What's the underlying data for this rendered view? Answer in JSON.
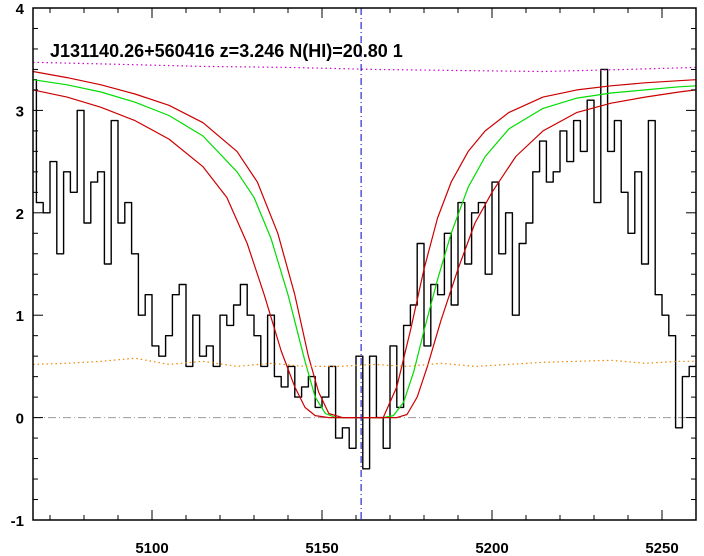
{
  "chart_data": {
    "type": "line",
    "title": "J131140.26+560416 z=3.246 N(HI)=20.80 1",
    "xlabel": "",
    "ylabel": "",
    "xlim": [
      5065,
      5260
    ],
    "ylim": [
      -1,
      4
    ],
    "x_ticks": [
      5100,
      5150,
      5200,
      5250
    ],
    "y_ticks": [
      -1,
      0,
      1,
      2,
      3,
      4
    ],
    "grid": false,
    "line_center": 5161.5,
    "series": [
      {
        "name": "",
        "style": "step",
        "color": "#000000",
        "x": [
          5065,
          5067,
          5069,
          5071,
          5073,
          5075,
          5077,
          5079,
          5081,
          5083,
          5085,
          5087,
          5089,
          5091,
          5093,
          5095,
          5097,
          5099,
          5101,
          5103,
          5105,
          5107,
          5109,
          5111,
          5113,
          5115,
          5117,
          5119,
          5121,
          5123,
          5125,
          5127,
          5129,
          5131,
          5133,
          5135,
          5137,
          5139,
          5141,
          5143,
          5145,
          5147,
          5149,
          5151,
          5153,
          5155,
          5157,
          5159,
          5161,
          5163,
          5165,
          5167,
          5169,
          5171,
          5173,
          5175,
          5177,
          5179,
          5181,
          5183,
          5185,
          5187,
          5189,
          5191,
          5193,
          5195,
          5197,
          5199,
          5201,
          5203,
          5205,
          5207,
          5209,
          5211,
          5213,
          5215,
          5217,
          5219,
          5221,
          5223,
          5225,
          5227,
          5229,
          5231,
          5233,
          5235,
          5237,
          5239,
          5241,
          5243,
          5245,
          5247,
          5249,
          5251,
          5253,
          5255,
          5257,
          5259
        ],
        "y": [
          3.3,
          2.1,
          2.0,
          2.5,
          1.6,
          2.4,
          2.2,
          3.0,
          1.9,
          2.3,
          2.4,
          1.5,
          2.9,
          1.9,
          2.1,
          1.6,
          1.0,
          1.2,
          0.7,
          0.6,
          0.8,
          1.2,
          1.3,
          0.5,
          1.0,
          0.6,
          0.7,
          0.5,
          1.0,
          0.9,
          1.1,
          1.3,
          1.0,
          0.8,
          0.5,
          1.0,
          0.4,
          0.3,
          0.5,
          0.2,
          0.3,
          0.4,
          0.1,
          0.2,
          0.5,
          -0.2,
          -0.1,
          -0.3,
          0.6,
          -0.5,
          0.6,
          0.0,
          -0.3,
          0.7,
          0.1,
          0.9,
          1.1,
          1.7,
          0.7,
          1.3,
          1.2,
          1.8,
          1.1,
          2.1,
          1.5,
          2.0,
          2.1,
          1.4,
          2.3,
          1.6,
          2.0,
          1.0,
          1.7,
          1.9,
          2.4,
          2.7,
          2.3,
          2.4,
          2.8,
          2.5,
          2.9,
          2.6,
          3.1,
          2.1,
          3.4,
          2.6,
          2.9,
          2.2,
          1.8,
          2.4,
          1.5,
          2.9,
          1.2,
          1.0,
          0.8,
          -0.1,
          0.4,
          0.5
        ]
      },
      {
        "name": "",
        "style": "line",
        "color": "#00dd00",
        "x": [
          5065,
          5075,
          5085,
          5095,
          5105,
          5115,
          5125,
          5130,
          5135,
          5140,
          5145,
          5148,
          5151,
          5154,
          5158,
          5161,
          5165,
          5168,
          5171,
          5174,
          5177,
          5180,
          5184,
          5188,
          5193,
          5198,
          5205,
          5215,
          5225,
          5235,
          5245,
          5255,
          5260
        ],
        "y": [
          3.3,
          3.25,
          3.18,
          3.08,
          2.95,
          2.75,
          2.4,
          2.15,
          1.75,
          1.2,
          0.55,
          0.2,
          0.04,
          0.0,
          0.0,
          0.0,
          0.0,
          0.0,
          0.02,
          0.15,
          0.45,
          0.85,
          1.35,
          1.8,
          2.25,
          2.55,
          2.82,
          3.02,
          3.12,
          3.17,
          3.2,
          3.23,
          3.24
        ]
      },
      {
        "name": "",
        "style": "line",
        "color": "#cc0000",
        "x": [
          5065,
          5075,
          5085,
          5095,
          5105,
          5115,
          5125,
          5131,
          5137,
          5142,
          5146,
          5149,
          5152,
          5156,
          5160,
          5164,
          5168,
          5172,
          5176,
          5180,
          5184,
          5188,
          5193,
          5198,
          5205,
          5215,
          5225,
          5235,
          5245,
          5255,
          5260
        ],
        "y": [
          3.38,
          3.32,
          3.25,
          3.16,
          3.05,
          2.88,
          2.6,
          2.3,
          1.8,
          1.2,
          0.6,
          0.25,
          0.04,
          0.0,
          0.0,
          0.0,
          0.0,
          0.3,
          0.85,
          1.45,
          1.95,
          2.3,
          2.6,
          2.8,
          2.98,
          3.13,
          3.2,
          3.24,
          3.27,
          3.29,
          3.3
        ]
      },
      {
        "name": "",
        "style": "line",
        "color": "#cc0000",
        "x": [
          5065,
          5075,
          5085,
          5095,
          5105,
          5115,
          5122,
          5128,
          5133,
          5138,
          5142,
          5145,
          5148,
          5152,
          5156,
          5160,
          5164,
          5168,
          5172,
          5175,
          5178,
          5181,
          5185,
          5190,
          5195,
          5200,
          5207,
          5215,
          5225,
          5235,
          5245,
          5255,
          5260
        ],
        "y": [
          3.2,
          3.13,
          3.03,
          2.9,
          2.72,
          2.45,
          2.15,
          1.7,
          1.2,
          0.65,
          0.3,
          0.1,
          0.02,
          0.0,
          0.0,
          0.0,
          0.0,
          0.0,
          0.0,
          0.03,
          0.2,
          0.5,
          0.95,
          1.45,
          1.9,
          2.2,
          2.55,
          2.8,
          2.98,
          3.07,
          3.13,
          3.18,
          3.2
        ]
      },
      {
        "name": "",
        "style": "dotted",
        "color": "#cc00cc",
        "x": [
          5065,
          5090,
          5115,
          5140,
          5165,
          5190,
          5215,
          5240,
          5260
        ],
        "y": [
          3.47,
          3.45,
          3.43,
          3.42,
          3.4,
          3.39,
          3.38,
          3.4,
          3.42
        ]
      },
      {
        "name": "",
        "style": "dotted",
        "color": "#ee8800",
        "x": [
          5065,
          5075,
          5085,
          5095,
          5105,
          5115,
          5125,
          5135,
          5145,
          5155,
          5165,
          5175,
          5185,
          5195,
          5205,
          5215,
          5225,
          5235,
          5245,
          5255,
          5260
        ],
        "y": [
          0.52,
          0.53,
          0.55,
          0.58,
          0.52,
          0.55,
          0.5,
          0.53,
          0.5,
          0.5,
          0.52,
          0.5,
          0.53,
          0.5,
          0.52,
          0.54,
          0.55,
          0.56,
          0.53,
          0.55,
          0.55
        ]
      }
    ],
    "zero_line": {
      "y": 0,
      "color": "#999999",
      "style": "dash-dot"
    }
  }
}
